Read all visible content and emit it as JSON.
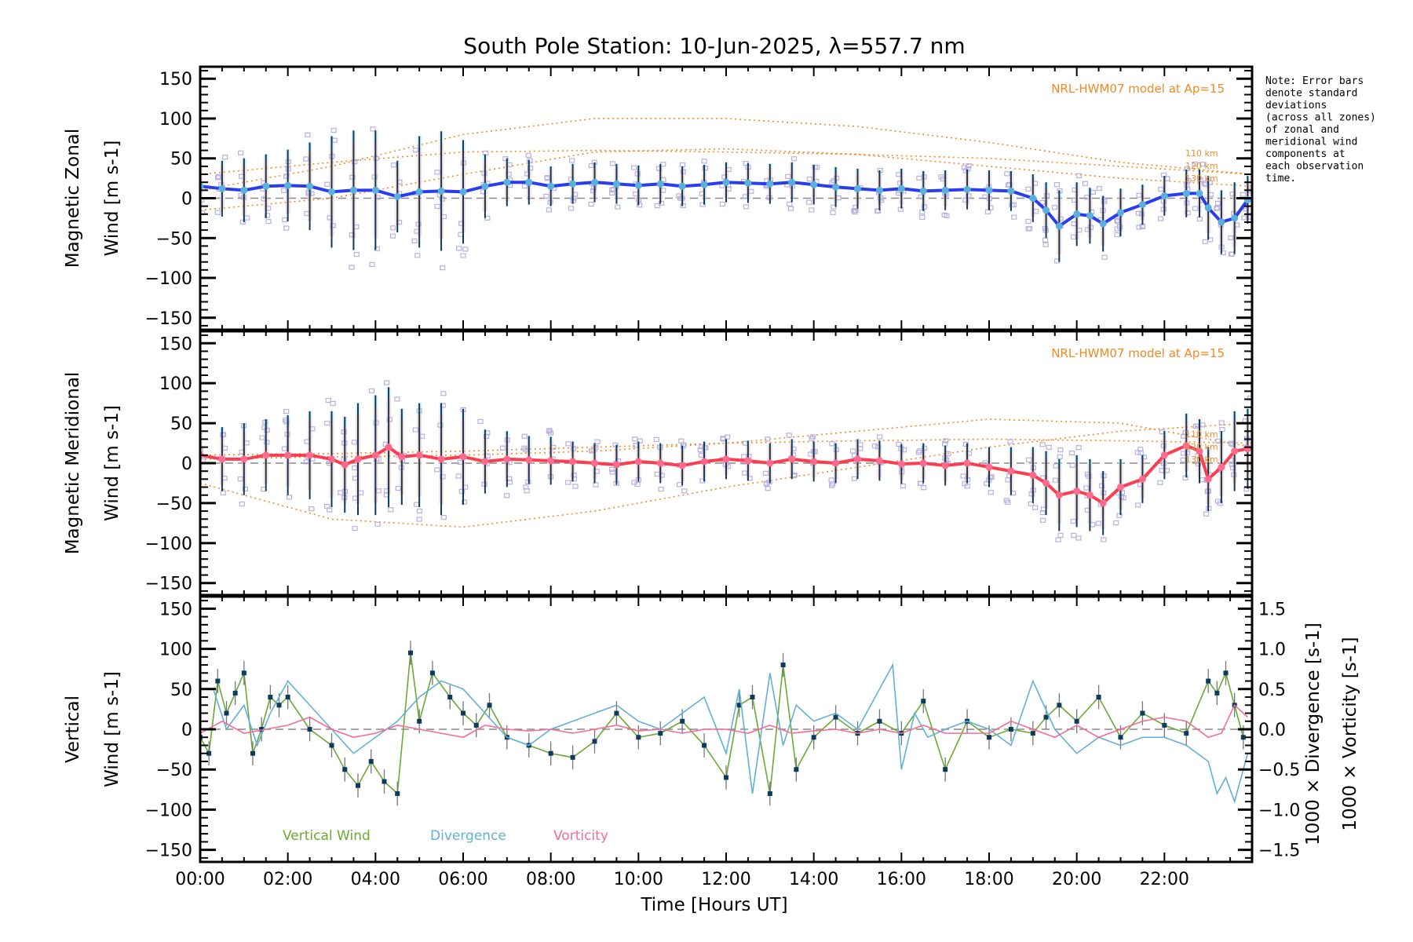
{
  "chart_data": {
    "title": "South Pole Station: 10-Jun-2025, λ=557.7 nm",
    "note": [
      "Note: Error bars",
      "denote standard",
      "deviations",
      "(across all zones)",
      "of zonal and",
      "meridional wind",
      "components at",
      "each observation",
      "time."
    ],
    "xlabel": "Time [Hours UT]",
    "x_tick_labels": [
      "00:00",
      "02:00",
      "04:00",
      "06:00",
      "08:00",
      "10:00",
      "12:00",
      "14:00",
      "16:00",
      "18:00",
      "20:00",
      "22:00"
    ],
    "xlim": [
      0,
      24
    ],
    "colors": {
      "zonal_mean": "#2a3cf0",
      "zonal_marker": "#5ab0dc",
      "meridional_mean": "#fb3d4f",
      "meridional_marker": "#ff6b8e",
      "error_bar": "#0d3b5e",
      "scatter": "#b8b0e0",
      "model": "#f08a24",
      "vertical": "#6aaa33",
      "divergence": "#62b0d8",
      "vorticity": "#f56b9a",
      "zero_line": "#888888"
    },
    "panels": [
      {
        "id": "zonal",
        "type": "line",
        "ylabel_lines": [
          "Magnetic Zonal",
          "Wind [m s-1]"
        ],
        "ylim": [
          -165,
          165
        ],
        "y_ticks": [
          -150,
          -100,
          -50,
          0,
          50,
          100,
          150
        ],
        "model_label": "NRL-HWM07 model at Ap=15",
        "model_alt_labels": [
          "110 km",
          "120 km",
          "130 km"
        ],
        "series": [
          {
            "name": "Mean zonal wind",
            "x": [
              0.0,
              0.5,
              1.0,
              1.5,
              2.0,
              2.5,
              3.0,
              3.5,
              4.0,
              4.5,
              5.0,
              5.5,
              6.0,
              6.5,
              7.0,
              7.5,
              8.0,
              8.5,
              9.0,
              9.5,
              10.0,
              10.5,
              11.0,
              11.5,
              12.0,
              12.5,
              13.0,
              13.5,
              14.0,
              14.5,
              15.0,
              15.5,
              16.0,
              16.5,
              17.0,
              17.5,
              18.0,
              18.5,
              19.0,
              19.3,
              19.6,
              20.0,
              20.3,
              20.6,
              21.0,
              21.5,
              22.0,
              22.5,
              22.8,
              23.0,
              23.3,
              23.6,
              23.9
            ],
            "values": [
              15,
              12,
              10,
              15,
              16,
              15,
              8,
              10,
              10,
              2,
              8,
              9,
              8,
              15,
              20,
              20,
              15,
              18,
              20,
              18,
              16,
              18,
              15,
              17,
              20,
              19,
              18,
              20,
              17,
              14,
              12,
              10,
              12,
              9,
              10,
              11,
              10,
              9,
              0,
              -15,
              -35,
              -20,
              -22,
              -32,
              -18,
              -8,
              3,
              6,
              6,
              -12,
              -30,
              -25,
              -2
            ],
            "error": [
              30,
              35,
              40,
              40,
              45,
              55,
              70,
              75,
              75,
              45,
              70,
              75,
              65,
              40,
              30,
              28,
              25,
              25,
              25,
              25,
              25,
              25,
              25,
              25,
              25,
              25,
              25,
              25,
              25,
              25,
              25,
              25,
              25,
              25,
              25,
              25,
              25,
              25,
              30,
              35,
              45,
              40,
              35,
              35,
              30,
              25,
              25,
              30,
              30,
              40,
              40,
              45,
              30
            ]
          }
        ],
        "model_curves": [
          {
            "name": "110 km",
            "x": [
              0,
              3,
              6,
              9,
              12,
              15,
              18,
              21,
              24
            ],
            "values": [
              -15,
              0,
              30,
              58,
              62,
              55,
              40,
              25,
              15
            ]
          },
          {
            "name": "120 km",
            "x": [
              0,
              3,
              6,
              9,
              12,
              15,
              18,
              21,
              24
            ],
            "values": [
              30,
              45,
              58,
              60,
              58,
              55,
              50,
              40,
              30
            ]
          },
          {
            "name": "130 km",
            "x": [
              0,
              3,
              6,
              9,
              12,
              15,
              18,
              21,
              24
            ],
            "values": [
              10,
              40,
              80,
              100,
              100,
              90,
              70,
              45,
              30
            ]
          }
        ]
      },
      {
        "id": "meridional",
        "type": "line",
        "ylabel_lines": [
          "Magnetic Meridional",
          "Wind [m s-1]"
        ],
        "ylim": [
          -165,
          165
        ],
        "y_ticks": [
          -150,
          -100,
          -50,
          0,
          50,
          100,
          150
        ],
        "model_label": "NRL-HWM07 model at Ap=15",
        "model_alt_labels": [
          "110 km",
          "120 km",
          "130 km"
        ],
        "series": [
          {
            "name": "Mean meridional wind",
            "x": [
              0.0,
              0.5,
              1.0,
              1.5,
              2.0,
              2.5,
              3.0,
              3.3,
              3.6,
              4.0,
              4.3,
              4.6,
              5.0,
              5.5,
              6.0,
              6.5,
              7.0,
              7.5,
              8.0,
              8.5,
              9.0,
              9.5,
              10.0,
              10.5,
              11.0,
              11.5,
              12.0,
              12.5,
              13.0,
              13.5,
              14.0,
              14.5,
              15.0,
              15.5,
              16.0,
              16.5,
              17.0,
              17.5,
              18.0,
              18.5,
              19.0,
              19.3,
              19.6,
              20.0,
              20.3,
              20.6,
              21.0,
              21.5,
              22.0,
              22.5,
              22.8,
              23.0,
              23.3,
              23.6,
              23.9
            ],
            "values": [
              10,
              5,
              5,
              10,
              10,
              10,
              5,
              -2,
              5,
              10,
              20,
              8,
              10,
              5,
              8,
              2,
              5,
              4,
              3,
              2,
              0,
              -2,
              2,
              0,
              -3,
              2,
              5,
              3,
              0,
              5,
              2,
              0,
              5,
              3,
              -1,
              0,
              -3,
              0,
              -5,
              -10,
              -15,
              -25,
              -40,
              -35,
              -40,
              -50,
              -30,
              -20,
              10,
              22,
              15,
              -20,
              -5,
              15,
              18
            ],
            "error": [
              35,
              40,
              45,
              45,
              50,
              55,
              60,
              60,
              70,
              75,
              75,
              60,
              65,
              70,
              60,
              40,
              35,
              30,
              30,
              25,
              25,
              25,
              25,
              25,
              25,
              25,
              25,
              25,
              25,
              25,
              25,
              25,
              25,
              25,
              25,
              25,
              25,
              25,
              25,
              30,
              35,
              40,
              45,
              45,
              45,
              40,
              35,
              30,
              30,
              40,
              40,
              40,
              45,
              50,
              50
            ]
          }
        ],
        "model_curves": [
          {
            "name": "110 km",
            "x": [
              0,
              3,
              6,
              9,
              12,
              15,
              18,
              21,
              24
            ],
            "values": [
              5,
              8,
              10,
              15,
              25,
              40,
              55,
              50,
              20
            ]
          },
          {
            "name": "120 km",
            "x": [
              0,
              3,
              6,
              9,
              12,
              15,
              18,
              21,
              24
            ],
            "values": [
              10,
              12,
              15,
              20,
              25,
              28,
              30,
              28,
              25
            ]
          },
          {
            "name": "130 km",
            "x": [
              0,
              3,
              6,
              9,
              12,
              15,
              18,
              21,
              24
            ],
            "values": [
              -25,
              -70,
              -80,
              -60,
              -30,
              -5,
              20,
              40,
              50
            ]
          }
        ]
      },
      {
        "id": "vertical",
        "type": "line",
        "ylabel_lines": [
          "Vertical",
          "Wind [m s-1]"
        ],
        "ylim": [
          -165,
          165
        ],
        "y_ticks": [
          -150,
          -100,
          -50,
          0,
          50,
          100,
          150
        ],
        "y2label_lines": [
          "1000 × Divergence [s-1]",
          "1000 × Vorticity [s-1]"
        ],
        "y2lim": [
          -1.65,
          1.65
        ],
        "y2_ticks": [
          -1.5,
          -1.0,
          -0.5,
          0.0,
          0.5,
          1.0,
          1.5
        ],
        "y2_tick_labels": [
          "−1.5",
          "−1.0",
          "−0.5",
          "0.0",
          "0.5",
          "1.0",
          "1.5"
        ],
        "legend": [
          "Vertical Wind",
          "Divergence",
          "Vorticity"
        ],
        "series": [
          {
            "name": "Vertical Wind",
            "axis": "left",
            "x": [
              0.0,
              0.2,
              0.4,
              0.6,
              0.8,
              1.0,
              1.2,
              1.4,
              1.6,
              1.8,
              2.0,
              2.5,
              3.0,
              3.3,
              3.6,
              3.9,
              4.2,
              4.5,
              4.8,
              5.0,
              5.3,
              5.7,
              6.0,
              6.3,
              6.6,
              7.0,
              7.5,
              8.0,
              8.5,
              9.0,
              9.5,
              10.0,
              10.5,
              11.0,
              11.5,
              12.0,
              12.3,
              12.6,
              13.0,
              13.3,
              13.6,
              14.0,
              14.5,
              15.0,
              15.5,
              16.0,
              16.5,
              17.0,
              17.5,
              18.0,
              18.5,
              19.0,
              19.3,
              19.6,
              20.0,
              20.5,
              21.0,
              21.5,
              22.0,
              22.5,
              23.0,
              23.2,
              23.4,
              23.6,
              23.8
            ],
            "values": [
              -10,
              -30,
              60,
              20,
              45,
              70,
              -30,
              0,
              40,
              30,
              40,
              0,
              -20,
              -50,
              -70,
              -40,
              -65,
              -80,
              95,
              10,
              70,
              40,
              20,
              5,
              30,
              -10,
              -20,
              -30,
              -35,
              -15,
              20,
              -10,
              -5,
              10,
              -20,
              -60,
              30,
              40,
              -80,
              80,
              -50,
              -10,
              15,
              -5,
              10,
              -5,
              35,
              -50,
              10,
              -10,
              0,
              -5,
              15,
              30,
              10,
              40,
              -10,
              20,
              5,
              -5,
              60,
              45,
              70,
              30,
              -10
            ],
            "error": 15
          },
          {
            "name": "Divergence",
            "axis": "right",
            "x": [
              0.0,
              0.3,
              0.6,
              1.0,
              1.3,
              1.6,
              2.0,
              2.5,
              3.0,
              3.5,
              4.0,
              4.5,
              5.0,
              5.5,
              6.0,
              6.5,
              7.0,
              7.5,
              8.0,
              8.5,
              9.0,
              9.5,
              10.0,
              10.5,
              11.0,
              11.5,
              12.0,
              12.3,
              12.6,
              13.0,
              13.3,
              13.6,
              14.0,
              14.5,
              15.0,
              15.5,
              15.8,
              16.0,
              16.3,
              16.6,
              17.0,
              17.5,
              18.0,
              18.5,
              19.0,
              19.5,
              20.0,
              20.5,
              21.0,
              21.5,
              22.0,
              22.5,
              23.0,
              23.2,
              23.4,
              23.6,
              23.9
            ],
            "values": [
              0.5,
              0.5,
              0.0,
              0.3,
              -0.2,
              0.2,
              0.6,
              0.3,
              0.0,
              -0.3,
              -0.1,
              0.1,
              0.4,
              0.6,
              0.5,
              0.2,
              -0.1,
              -0.2,
              0.0,
              0.1,
              0.2,
              0.3,
              0.1,
              0.0,
              0.2,
              0.4,
              -0.3,
              0.5,
              -0.8,
              0.7,
              -0.2,
              0.3,
              0.1,
              0.2,
              0.0,
              0.5,
              0.8,
              -0.5,
              0.2,
              -0.1,
              0.0,
              0.1,
              0.0,
              -0.2,
              0.6,
              0.0,
              -0.3,
              -0.1,
              -0.2,
              -0.1,
              -0.1,
              -0.2,
              -0.4,
              -0.8,
              -0.6,
              -0.9,
              -0.3
            ]
          },
          {
            "name": "Vorticity",
            "axis": "right",
            "x": [
              0.0,
              0.5,
              1.0,
              1.5,
              2.0,
              2.5,
              3.0,
              3.5,
              4.0,
              4.5,
              5.0,
              5.5,
              6.0,
              6.5,
              7.0,
              7.5,
              8.0,
              8.5,
              9.0,
              9.5,
              10.0,
              10.5,
              11.0,
              11.5,
              12.0,
              12.5,
              13.0,
              13.5,
              14.0,
              14.5,
              15.0,
              15.5,
              16.0,
              16.5,
              17.0,
              17.5,
              18.0,
              18.5,
              19.0,
              19.5,
              20.0,
              20.5,
              21.0,
              21.5,
              22.0,
              22.5,
              23.0,
              23.3,
              23.6,
              23.9
            ],
            "values": [
              -0.05,
              0.1,
              -0.05,
              0.0,
              0.05,
              0.15,
              0.0,
              -0.1,
              -0.05,
              0.05,
              0.0,
              -0.05,
              -0.1,
              0.05,
              0.0,
              -0.02,
              0.0,
              -0.05,
              0.0,
              0.05,
              -0.02,
              0.0,
              -0.05,
              0.0,
              0.0,
              -0.05,
              0.05,
              -0.05,
              -0.02,
              0.0,
              -0.05,
              0.0,
              -0.05,
              0.05,
              -0.05,
              -0.05,
              -0.05,
              0.1,
              0.0,
              -0.1,
              0.05,
              -0.1,
              0.0,
              0.1,
              0.15,
              0.1,
              -0.1,
              -0.05,
              0.3,
              0.15
            ]
          }
        ]
      }
    ]
  }
}
